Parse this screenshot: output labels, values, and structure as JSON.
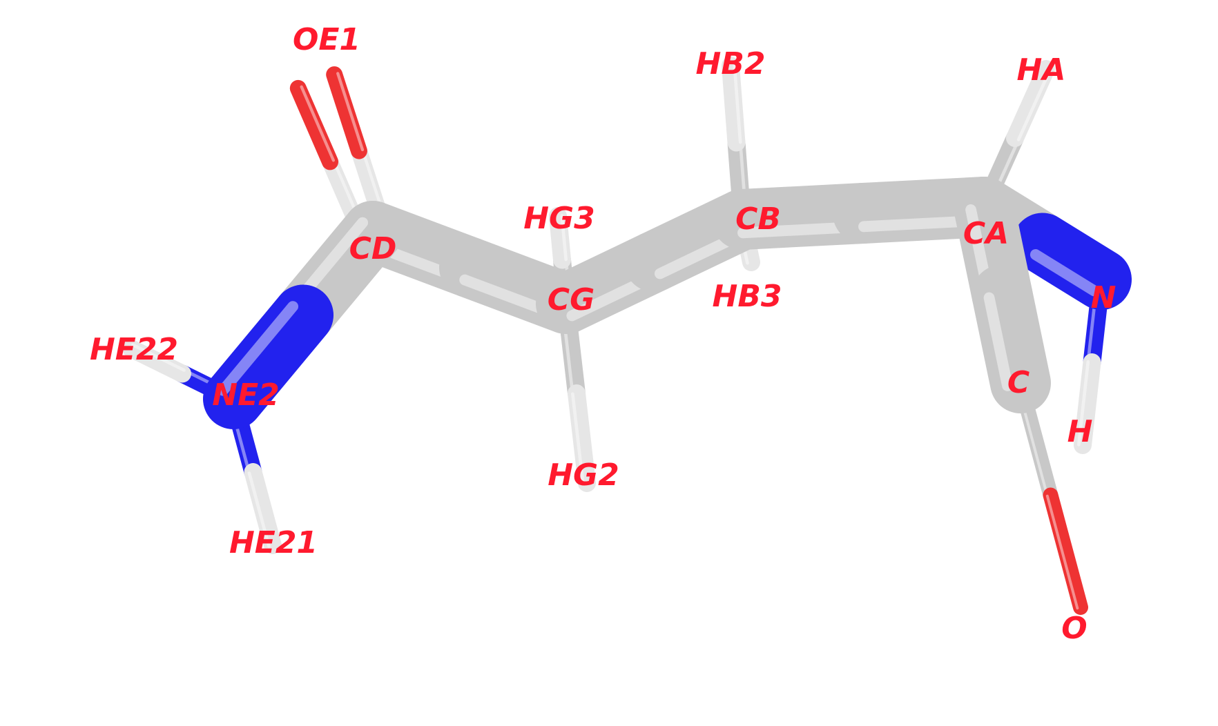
{
  "colors": {
    "label": "#ff1a2e",
    "carbon": "#c8c8c8",
    "nitrogen": "#2222ee",
    "oxygen": "#ee3333",
    "hydrogen": "#e6e6e6",
    "background": "#ffffff"
  },
  "atoms": [
    {
      "id": "OE1",
      "element": "O",
      "label": "OE1"
    },
    {
      "id": "HB2",
      "element": "H",
      "label": "HB2"
    },
    {
      "id": "HA",
      "element": "H",
      "label": "HA"
    },
    {
      "id": "HG3",
      "element": "H",
      "label": "HG3"
    },
    {
      "id": "CB",
      "element": "C",
      "label": "CB"
    },
    {
      "id": "CA",
      "element": "C",
      "label": "CA"
    },
    {
      "id": "CD",
      "element": "C",
      "label": "CD"
    },
    {
      "id": "N",
      "element": "N",
      "label": "N"
    },
    {
      "id": "CG",
      "element": "C",
      "label": "CG"
    },
    {
      "id": "HB3",
      "element": "H",
      "label": "HB3"
    },
    {
      "id": "HE22",
      "element": "H",
      "label": "HE22"
    },
    {
      "id": "C",
      "element": "C",
      "label": "C"
    },
    {
      "id": "NE2",
      "element": "N",
      "label": "NE2"
    },
    {
      "id": "H",
      "element": "H",
      "label": "H"
    },
    {
      "id": "HG2",
      "element": "H",
      "label": "HG2"
    },
    {
      "id": "HE21",
      "element": "H",
      "label": "HE21"
    },
    {
      "id": "O",
      "element": "O",
      "label": "O"
    }
  ],
  "bonds": [
    [
      "CA",
      "HA"
    ],
    [
      "CB",
      "HB2"
    ],
    [
      "CB",
      "HB3"
    ],
    [
      "CG",
      "HG3"
    ],
    [
      "CG",
      "HG2"
    ],
    [
      "CD",
      "OE1"
    ],
    [
      "CD",
      "CG"
    ],
    [
      "CG",
      "CB"
    ],
    [
      "CB",
      "CA"
    ],
    [
      "CA",
      "N"
    ],
    [
      "CA",
      "C"
    ],
    [
      "C",
      "O"
    ],
    [
      "N",
      "H"
    ],
    [
      "CD",
      "NE2"
    ],
    [
      "NE2",
      "HE22"
    ],
    [
      "NE2",
      "HE21"
    ]
  ]
}
